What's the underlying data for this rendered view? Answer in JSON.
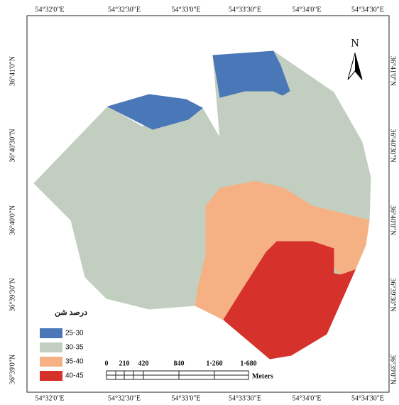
{
  "map": {
    "top_labels": [
      "54°32'0\"E",
      "54°32'30\"E",
      "54°33'0\"E",
      "54°33'30\"E",
      "54°34'0\"E",
      "54°34'30\"E"
    ],
    "bottom_labels": [
      "54°32'0\"E",
      "54°32'30\"E",
      "54°33'0\"E",
      "54°33'30\"E",
      "54°34'0\"E",
      "54°34'30\"E"
    ],
    "left_labels": [
      "36°41'0\"N",
      "36°40'30\"N",
      "36°40'0\"N",
      "36°39'30\"N",
      "36°39'0\"N"
    ],
    "right_labels": [
      "36°41'0\"N",
      "36°40'30\"N",
      "36°40'0\"N",
      "36°39'30\"N",
      "36°39'0\"N"
    ],
    "north": "N",
    "legend": {
      "title": "درصد شن",
      "items": [
        {
          "label": "25-30",
          "color": "#4a77b8"
        },
        {
          "label": "30-35",
          "color": "#c2cfc0"
        },
        {
          "label": "35-40",
          "color": "#f5b183"
        },
        {
          "label": "40-45",
          "color": "#d6312a"
        }
      ]
    },
    "scale_bar": {
      "labels": [
        "0",
        "210",
        "420",
        "840",
        "1·260",
        "1·680"
      ],
      "unit": "Meters"
    }
  }
}
